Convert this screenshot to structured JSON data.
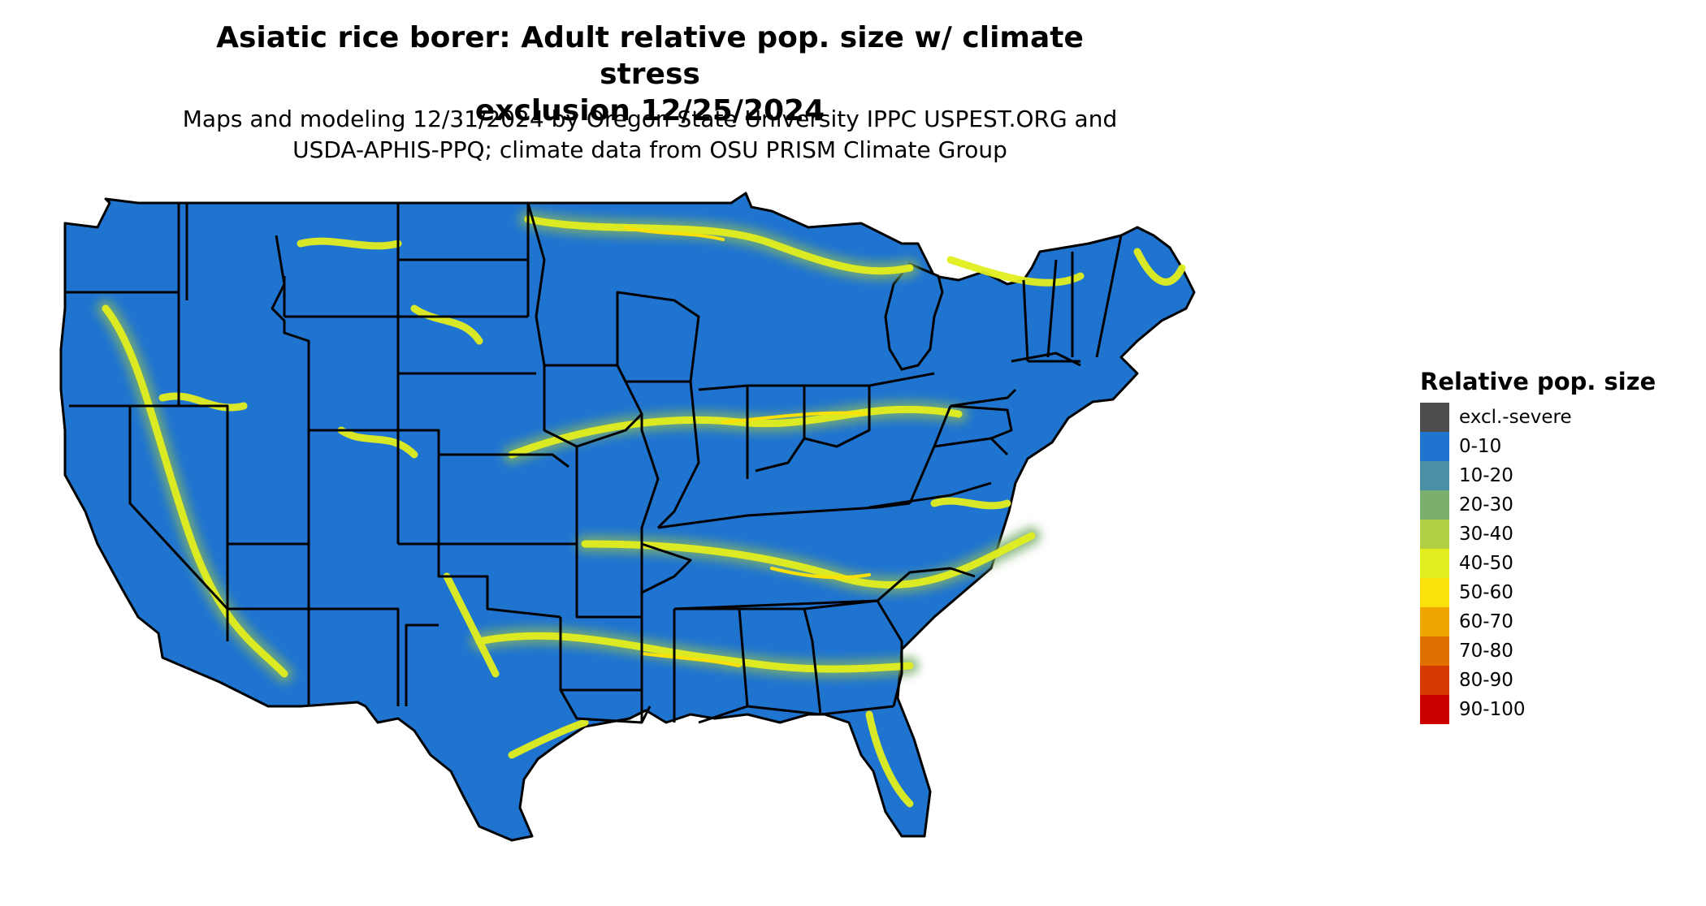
{
  "title": "Asiatic rice borer: Adult relative pop. size w/ climate stress exclusion 12/25/2024",
  "subtitle": "Maps and modeling 12/31/2024 by Oregon State University IPPC USPEST.ORG and USDA-APHIS-PPQ; climate data from OSU PRISM Climate Group",
  "legend": {
    "title": "Relative pop. size",
    "items": [
      {
        "label": "excl.-severe",
        "color": "#4d4d4d"
      },
      {
        "label": "0-10",
        "color": "#1f74d0"
      },
      {
        "label": "10-20",
        "color": "#4a90a4"
      },
      {
        "label": "20-30",
        "color": "#7aaf6e"
      },
      {
        "label": "30-40",
        "color": "#b2d043"
      },
      {
        "label": "40-50",
        "color": "#e2ee1e"
      },
      {
        "label": "50-60",
        "color": "#fbe10a"
      },
      {
        "label": "60-70",
        "color": "#eea600"
      },
      {
        "label": "70-80",
        "color": "#e07000"
      },
      {
        "label": "80-90",
        "color": "#d53a00"
      },
      {
        "label": "90-100",
        "color": "#cc0000"
      }
    ]
  },
  "map": {
    "land_color": "#1f74d0",
    "border_color": "#000000"
  }
}
